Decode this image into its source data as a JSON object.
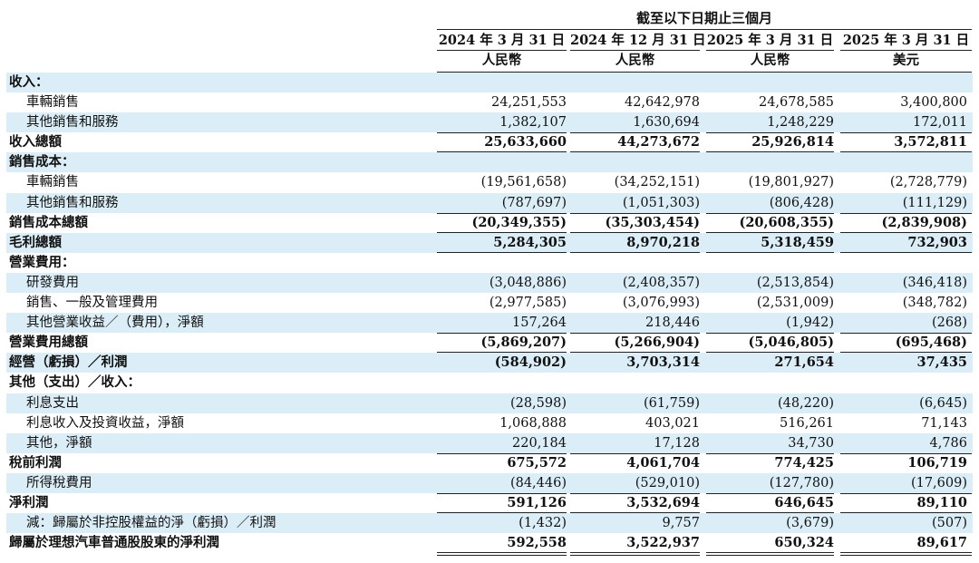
{
  "header": {
    "period": "截至以下日期止三個月",
    "columns": [
      {
        "date": "2024 年 3 月 31 日",
        "currency": "人民幣"
      },
      {
        "date": "2024 年 12 月 31 日",
        "currency": "人民幣"
      },
      {
        "date": "2025 年 3 月 31 日",
        "currency": "人民幣"
      },
      {
        "date": "2025 年 3 月 31 日",
        "currency": "美元"
      }
    ]
  },
  "rows": [
    {
      "label": "收入：",
      "values": [
        "",
        "",
        "",
        ""
      ]
    },
    {
      "label": "車輛銷售",
      "values": [
        "24,251,553",
        "42,642,978",
        "24,678,585",
        "3,400,800"
      ]
    },
    {
      "label": "其他銷售和服務",
      "values": [
        "1,382,107",
        "1,630,694",
        "1,248,229",
        "172,011"
      ]
    },
    {
      "label": "收入總額",
      "values": [
        "25,633,660",
        "44,273,672",
        "25,926,814",
        "3,572,811"
      ]
    },
    {
      "label": "銷售成本：",
      "values": [
        "",
        "",
        "",
        ""
      ]
    },
    {
      "label": "車輛銷售",
      "values": [
        "(19,561,658)",
        "(34,252,151)",
        "(19,801,927)",
        "(2,728,779)"
      ]
    },
    {
      "label": "其他銷售和服務",
      "values": [
        "(787,697)",
        "(1,051,303)",
        "(806,428)",
        "(111,129)"
      ]
    },
    {
      "label": "銷售成本總額",
      "values": [
        "(20,349,355)",
        "(35,303,454)",
        "(20,608,355)",
        "(2,839,908)"
      ]
    },
    {
      "label": "毛利總額",
      "values": [
        "5,284,305",
        "8,970,218",
        "5,318,459",
        "732,903"
      ]
    },
    {
      "label": "營業費用：",
      "values": [
        "",
        "",
        "",
        ""
      ]
    },
    {
      "label": "研發費用",
      "values": [
        "(3,048,886)",
        "(2,408,357)",
        "(2,513,854)",
        "(346,418)"
      ]
    },
    {
      "label": "銷售、一般及管理費用",
      "values": [
        "(2,977,585)",
        "(3,076,993)",
        "(2,531,009)",
        "(348,782)"
      ]
    },
    {
      "label": "其他營業收益／（費用），淨額",
      "values": [
        "157,264",
        "218,446",
        "(1,942)",
        "(268)"
      ]
    },
    {
      "label": "營業費用總額",
      "values": [
        "(5,869,207)",
        "(5,266,904)",
        "(5,046,805)",
        "(695,468)"
      ]
    },
    {
      "label": "經營（虧損）／利潤",
      "values": [
        "(584,902)",
        "3,703,314",
        "271,654",
        "37,435"
      ]
    },
    {
      "label": "其他（支出）／收入：",
      "values": [
        "",
        "",
        "",
        ""
      ]
    },
    {
      "label": "利息支出",
      "values": [
        "(28,598)",
        "(61,759)",
        "(48,220)",
        "(6,645)"
      ]
    },
    {
      "label": "利息收入及投資收益，淨額",
      "values": [
        "1,068,888",
        "403,021",
        "516,261",
        "71,143"
      ]
    },
    {
      "label": "其他，淨額",
      "values": [
        "220,184",
        "17,128",
        "34,730",
        "4,786"
      ]
    },
    {
      "label": "稅前利潤",
      "values": [
        "675,572",
        "4,061,704",
        "774,425",
        "106,719"
      ]
    },
    {
      "label": "所得稅費用",
      "values": [
        "(84,446)",
        "(529,010)",
        "(127,780)",
        "(17,609)"
      ]
    },
    {
      "label": "淨利潤",
      "values": [
        "591,126",
        "3,532,694",
        "646,645",
        "89,110"
      ]
    },
    {
      "label": "減：歸屬於非控股權益的淨（虧損）／利潤",
      "values": [
        "(1,432)",
        "9,757",
        "(3,679)",
        "(507)"
      ]
    },
    {
      "label": "歸屬於理想汽車普通股股東的淨利潤",
      "values": [
        "592,558",
        "3,522,937",
        "650,324",
        "89,617"
      ]
    }
  ]
}
